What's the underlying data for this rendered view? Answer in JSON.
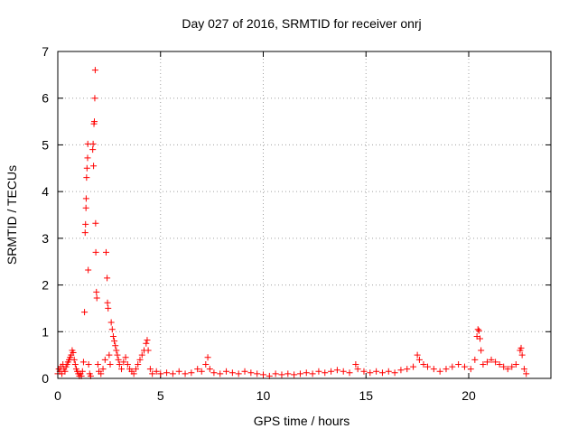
{
  "chart_data": {
    "type": "scatter",
    "title": "Day 027 of 2016, SRMTID for receiver onrj",
    "xlabel": "GPS time / hours",
    "ylabel": "SRMTID / TECUs",
    "xlim": [
      0,
      24
    ],
    "ylim": [
      0,
      7
    ],
    "x_ticks": [
      0,
      5,
      10,
      15,
      20
    ],
    "y_ticks": [
      0,
      1,
      2,
      3,
      4,
      5,
      6,
      7
    ],
    "x_tick_labels": [
      "0",
      "5",
      "10",
      "15",
      "20"
    ],
    "y_tick_labels": [
      "0",
      "1",
      "2",
      "3",
      "4",
      "5",
      "6",
      "7"
    ],
    "grid": true,
    "marker": "+",
    "series": [
      {
        "name": "onrj",
        "color": "#ff0000",
        "points": [
          [
            0.0,
            0.1
          ],
          [
            0.05,
            0.2
          ],
          [
            0.1,
            0.15
          ],
          [
            0.15,
            0.25
          ],
          [
            0.2,
            0.1
          ],
          [
            0.25,
            0.3
          ],
          [
            0.3,
            0.2
          ],
          [
            0.35,
            0.15
          ],
          [
            0.4,
            0.25
          ],
          [
            0.45,
            0.3
          ],
          [
            0.5,
            0.35
          ],
          [
            0.55,
            0.4
          ],
          [
            0.6,
            0.45
          ],
          [
            0.65,
            0.5
          ],
          [
            0.7,
            0.6
          ],
          [
            0.75,
            0.55
          ],
          [
            0.8,
            0.4
          ],
          [
            0.85,
            0.3
          ],
          [
            0.9,
            0.2
          ],
          [
            0.95,
            0.15
          ],
          [
            1.0,
            0.1
          ],
          [
            1.05,
            0.05
          ],
          [
            1.1,
            0.1
          ],
          [
            1.15,
            0.05
          ],
          [
            1.2,
            0.15
          ],
          [
            1.25,
            0.35
          ],
          [
            1.3,
            1.42
          ],
          [
            1.33,
            3.12
          ],
          [
            1.35,
            3.3
          ],
          [
            1.37,
            3.65
          ],
          [
            1.38,
            3.85
          ],
          [
            1.4,
            4.3
          ],
          [
            1.42,
            4.5
          ],
          [
            1.45,
            4.72
          ],
          [
            1.46,
            5.02
          ],
          [
            1.48,
            2.32
          ],
          [
            1.5,
            0.3
          ],
          [
            1.55,
            0.1
          ],
          [
            1.6,
            0.05
          ],
          [
            1.7,
            4.9
          ],
          [
            1.72,
            5.02
          ],
          [
            1.74,
            4.55
          ],
          [
            1.76,
            5.45
          ],
          [
            1.78,
            5.5
          ],
          [
            1.8,
            6.0
          ],
          [
            1.82,
            6.6
          ],
          [
            1.84,
            3.32
          ],
          [
            1.85,
            2.7
          ],
          [
            1.88,
            1.85
          ],
          [
            1.9,
            1.72
          ],
          [
            1.95,
            0.3
          ],
          [
            2.0,
            0.15
          ],
          [
            2.1,
            0.1
          ],
          [
            2.2,
            0.2
          ],
          [
            2.3,
            0.4
          ],
          [
            2.35,
            2.7
          ],
          [
            2.4,
            2.15
          ],
          [
            2.42,
            1.62
          ],
          [
            2.45,
            1.5
          ],
          [
            2.5,
            0.5
          ],
          [
            2.55,
            0.3
          ],
          [
            2.6,
            1.2
          ],
          [
            2.65,
            1.05
          ],
          [
            2.7,
            0.9
          ],
          [
            2.75,
            0.8
          ],
          [
            2.8,
            0.7
          ],
          [
            2.85,
            0.6
          ],
          [
            2.9,
            0.5
          ],
          [
            2.95,
            0.4
          ],
          [
            3.0,
            0.3
          ],
          [
            3.1,
            0.2
          ],
          [
            3.2,
            0.35
          ],
          [
            3.3,
            0.45
          ],
          [
            3.4,
            0.3
          ],
          [
            3.5,
            0.2
          ],
          [
            3.6,
            0.15
          ],
          [
            3.7,
            0.1
          ],
          [
            3.8,
            0.2
          ],
          [
            3.9,
            0.3
          ],
          [
            4.0,
            0.4
          ],
          [
            4.1,
            0.5
          ],
          [
            4.2,
            0.6
          ],
          [
            4.3,
            0.75
          ],
          [
            4.35,
            0.82
          ],
          [
            4.4,
            0.6
          ],
          [
            4.5,
            0.2
          ],
          [
            4.6,
            0.1
          ],
          [
            4.8,
            0.15
          ],
          [
            5.0,
            0.1
          ],
          [
            5.3,
            0.12
          ],
          [
            5.6,
            0.1
          ],
          [
            5.9,
            0.15
          ],
          [
            6.2,
            0.1
          ],
          [
            6.5,
            0.12
          ],
          [
            6.8,
            0.2
          ],
          [
            7.0,
            0.15
          ],
          [
            7.2,
            0.3
          ],
          [
            7.3,
            0.45
          ],
          [
            7.4,
            0.2
          ],
          [
            7.6,
            0.12
          ],
          [
            7.9,
            0.1
          ],
          [
            8.2,
            0.15
          ],
          [
            8.5,
            0.12
          ],
          [
            8.8,
            0.1
          ],
          [
            9.1,
            0.15
          ],
          [
            9.4,
            0.12
          ],
          [
            9.7,
            0.1
          ],
          [
            10.0,
            0.08
          ],
          [
            10.3,
            0.05
          ],
          [
            10.6,
            0.1
          ],
          [
            10.9,
            0.08
          ],
          [
            11.2,
            0.1
          ],
          [
            11.5,
            0.08
          ],
          [
            11.8,
            0.1
          ],
          [
            12.1,
            0.12
          ],
          [
            12.4,
            0.1
          ],
          [
            12.7,
            0.15
          ],
          [
            13.0,
            0.12
          ],
          [
            13.3,
            0.15
          ],
          [
            13.6,
            0.18
          ],
          [
            13.9,
            0.15
          ],
          [
            14.2,
            0.12
          ],
          [
            14.5,
            0.3
          ],
          [
            14.6,
            0.2
          ],
          [
            14.9,
            0.15
          ],
          [
            15.2,
            0.12
          ],
          [
            15.5,
            0.15
          ],
          [
            15.8,
            0.12
          ],
          [
            16.1,
            0.15
          ],
          [
            16.4,
            0.12
          ],
          [
            16.7,
            0.18
          ],
          [
            17.0,
            0.2
          ],
          [
            17.3,
            0.25
          ],
          [
            17.5,
            0.5
          ],
          [
            17.6,
            0.4
          ],
          [
            17.8,
            0.3
          ],
          [
            18.0,
            0.25
          ],
          [
            18.3,
            0.2
          ],
          [
            18.6,
            0.15
          ],
          [
            18.9,
            0.2
          ],
          [
            19.2,
            0.25
          ],
          [
            19.5,
            0.3
          ],
          [
            19.8,
            0.25
          ],
          [
            20.1,
            0.2
          ],
          [
            20.3,
            0.4
          ],
          [
            20.4,
            0.9
          ],
          [
            20.45,
            1.05
          ],
          [
            20.5,
            1.02
          ],
          [
            20.55,
            0.85
          ],
          [
            20.6,
            0.6
          ],
          [
            20.7,
            0.3
          ],
          [
            20.9,
            0.35
          ],
          [
            21.1,
            0.4
          ],
          [
            21.3,
            0.35
          ],
          [
            21.5,
            0.3
          ],
          [
            21.7,
            0.25
          ],
          [
            21.9,
            0.2
          ],
          [
            22.1,
            0.25
          ],
          [
            22.3,
            0.3
          ],
          [
            22.5,
            0.6
          ],
          [
            22.55,
            0.65
          ],
          [
            22.6,
            0.5
          ],
          [
            22.7,
            0.2
          ],
          [
            22.8,
            0.1
          ]
        ]
      }
    ]
  }
}
